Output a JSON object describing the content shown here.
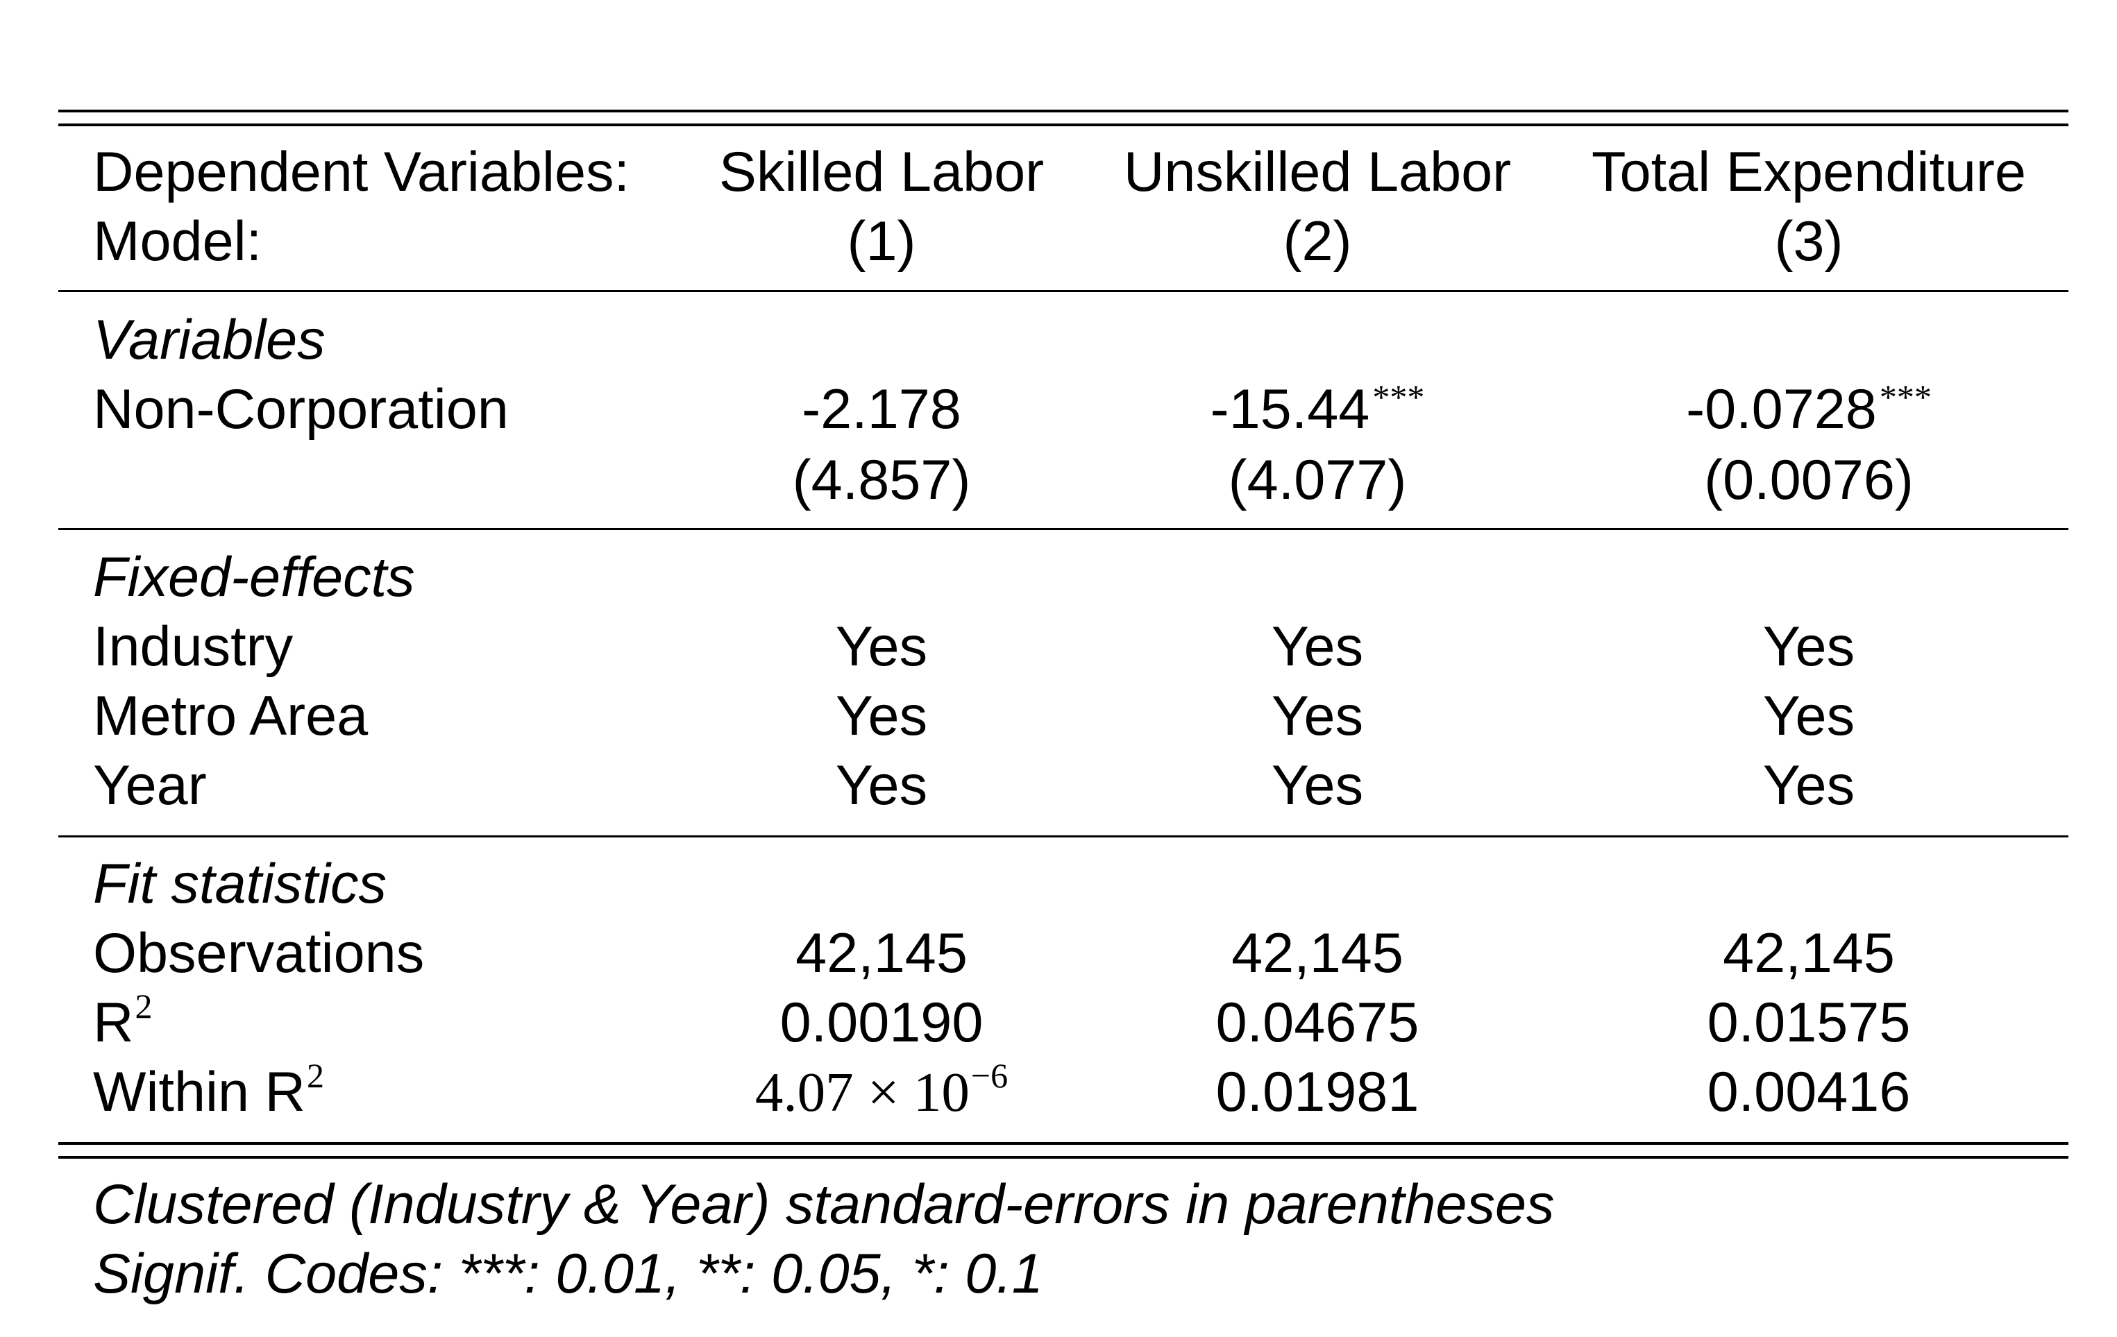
{
  "table": {
    "header": {
      "row1_label": "Dependent Variables:",
      "row2_label": "Model:",
      "dependent": [
        "Skilled Labor",
        "Unskilled Labor",
        "Total Expenditure"
      ],
      "models": [
        "(1)",
        "(2)",
        "(3)"
      ]
    },
    "variables": {
      "section": "Variables",
      "row_label": "Non-Corporation",
      "coef": [
        "-2.178",
        "-15.44",
        "-0.0728"
      ],
      "stars": [
        "",
        "***",
        "***"
      ],
      "se": [
        "(4.857)",
        "(4.077)",
        "(0.0076)"
      ]
    },
    "fixed_effects": {
      "section": "Fixed-effects",
      "rows": [
        {
          "label": "Industry",
          "values": [
            "Yes",
            "Yes",
            "Yes"
          ]
        },
        {
          "label": "Metro Area",
          "values": [
            "Yes",
            "Yes",
            "Yes"
          ]
        },
        {
          "label": "Year",
          "values": [
            "Yes",
            "Yes",
            "Yes"
          ]
        }
      ]
    },
    "fit": {
      "section": "Fit statistics",
      "observations_label": "Observations",
      "observations": [
        "42,145",
        "42,145",
        "42,145"
      ],
      "r2_label": "R",
      "r2_sup": "2",
      "r2": [
        "0.00190",
        "0.04675",
        "0.01575"
      ],
      "within_label": "Within R",
      "within_sup": "2",
      "within_first_mantissa": "4.07",
      "within_first_times": "×",
      "within_first_base": "10",
      "within_first_exp": "−6",
      "within": [
        "0.01981",
        "0.00416"
      ]
    },
    "notes": [
      "Clustered (Industry & Year) standard-errors in parentheses",
      "Signif. Codes: ***: 0.01, **: 0.05, *: 0.1"
    ]
  }
}
